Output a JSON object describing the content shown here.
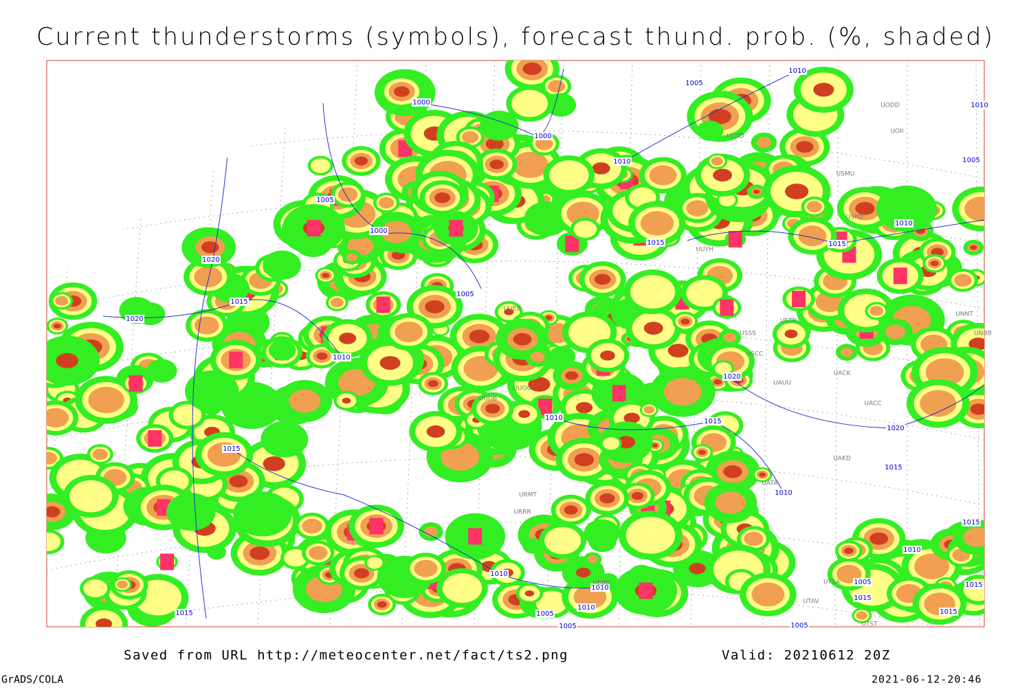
{
  "header": {
    "title": "Current thunderstorms (symbols), forecast thund. prob. (%, shaded)"
  },
  "footer": {
    "source": "Saved from URL http://meteocenter.net/fact/ts2.png",
    "valid": "Valid: 20210612 20Z",
    "software": "GrADS/COLA",
    "timestamp": "2021-06-12-20:46"
  },
  "map": {
    "isobar_labels": [
      1010,
      1005,
      1000,
      1000,
      1010,
      1005,
      1005,
      1000,
      1010,
      1015,
      1015,
      1020,
      1005,
      1015,
      1020,
      1010,
      1020,
      1010,
      1015,
      1020,
      1015,
      1015,
      1010,
      1015,
      1010,
      1010,
      1005,
      1015,
      1015,
      1015,
      1010,
      1010,
      1005,
      1015,
      1005,
      1005,
      1010
    ],
    "station_labels": [
      "UODD",
      "UOII",
      "ULDD",
      "USMU",
      "USPD",
      "UUYH",
      "USSS",
      "USTR",
      "USCC",
      "UAUU",
      "UACK",
      "UACC",
      "UNNT",
      "UNBB",
      "UAKD",
      "UATA",
      "UTSA",
      "UTAV",
      "UTST",
      "UBBB",
      "URMT",
      "URRR",
      "UUOO",
      "UUOB",
      "UUEE"
    ]
  }
}
